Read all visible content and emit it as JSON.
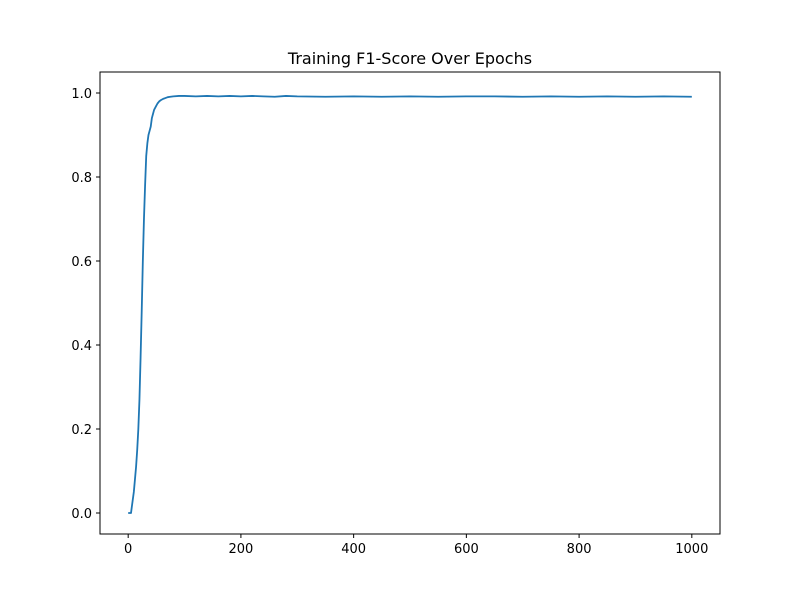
{
  "chart_data": {
    "type": "line",
    "title": "Training F1-Score Over Epochs",
    "xlabel": "",
    "ylabel": "",
    "xlim": [
      -50,
      1050
    ],
    "ylim": [
      -0.05,
      1.05
    ],
    "x_ticks": [
      0,
      200,
      400,
      600,
      800,
      1000
    ],
    "x_tick_labels": [
      "0",
      "200",
      "400",
      "600",
      "800",
      "1000"
    ],
    "y_ticks": [
      0.0,
      0.2,
      0.4,
      0.6,
      0.8,
      1.0
    ],
    "y_tick_labels": [
      "0.0",
      "0.2",
      "0.4",
      "0.6",
      "0.8",
      "1.0"
    ],
    "grid": false,
    "legend": "none",
    "series": [
      {
        "color": "#1f77b4",
        "x": [
          0,
          5,
          8,
          10,
          12,
          14,
          16,
          18,
          20,
          22,
          24,
          26,
          28,
          30,
          32,
          34,
          36,
          38,
          40,
          42,
          44,
          46,
          48,
          50,
          52,
          55,
          58,
          62,
          66,
          70,
          75,
          80,
          90,
          100,
          120,
          140,
          160,
          180,
          200,
          220,
          240,
          260,
          280,
          300,
          350,
          400,
          450,
          500,
          550,
          600,
          650,
          700,
          750,
          800,
          850,
          900,
          950,
          1000
        ],
        "y": [
          0.0,
          0.0,
          0.03,
          0.05,
          0.08,
          0.11,
          0.15,
          0.2,
          0.27,
          0.37,
          0.48,
          0.6,
          0.7,
          0.78,
          0.85,
          0.88,
          0.9,
          0.91,
          0.92,
          0.94,
          0.95,
          0.96,
          0.965,
          0.97,
          0.975,
          0.98,
          0.983,
          0.986,
          0.988,
          0.99,
          0.991,
          0.992,
          0.993,
          0.993,
          0.992,
          0.993,
          0.992,
          0.993,
          0.992,
          0.993,
          0.992,
          0.991,
          0.993,
          0.992,
          0.991,
          0.992,
          0.991,
          0.992,
          0.991,
          0.992,
          0.992,
          0.991,
          0.992,
          0.991,
          0.992,
          0.991,
          0.992,
          0.991
        ]
      }
    ]
  }
}
